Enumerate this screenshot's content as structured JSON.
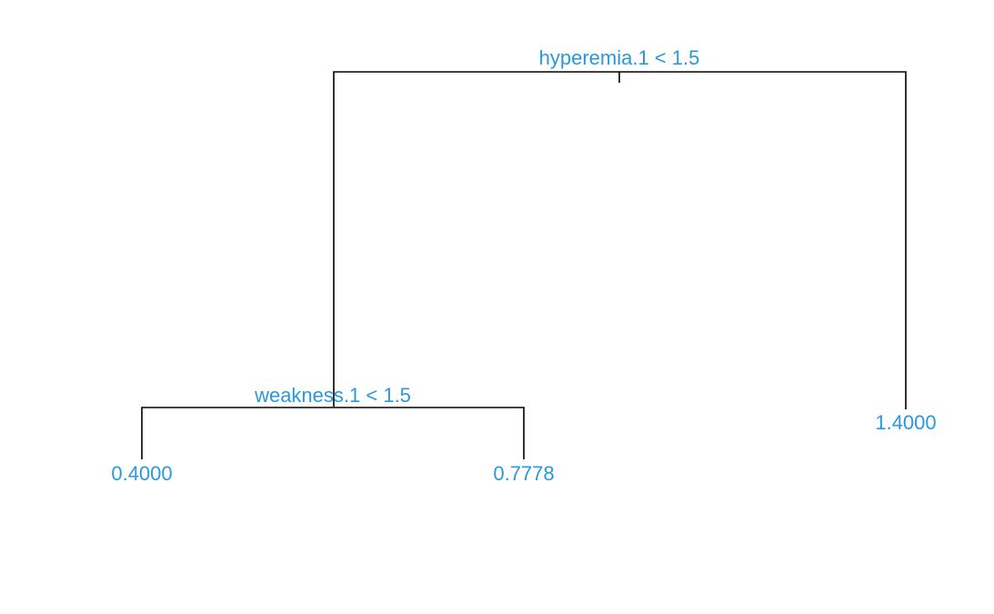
{
  "colors": {
    "label": "#2a98dc",
    "edge": "#000000",
    "background": "#ffffff"
  },
  "tree": {
    "root_split": "hyperemia.1 < 1.5",
    "left_split": "weakness.1 < 1.5",
    "leaves": {
      "left_left": "0.4000",
      "left_right": "0.7778",
      "right": "1.4000"
    }
  }
}
